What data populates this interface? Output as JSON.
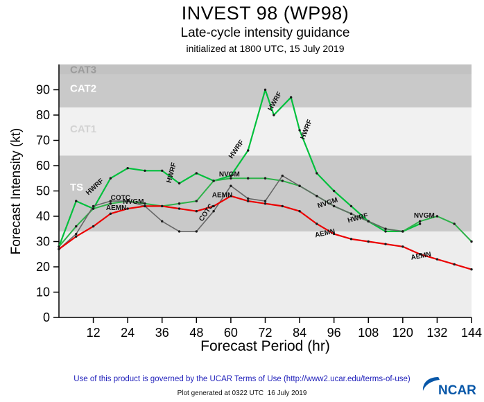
{
  "header": {
    "title": "INVEST 98 (WP98)",
    "subtitle": "Late-cycle intensity guidance",
    "initialized": "initialized at 1800 UTC, 15 July 2019"
  },
  "chart_data": {
    "type": "line",
    "title": "INVEST 98 (WP98)",
    "subtitle": "Late-cycle intensity guidance",
    "xlabel": "Forecast Period (hr)",
    "ylabel": "Forecast Intensity (kt)",
    "xlim": [
      0,
      144
    ],
    "ylim": [
      0,
      100
    ],
    "xticks": [
      12,
      24,
      36,
      48,
      60,
      72,
      84,
      96,
      108,
      120,
      132,
      144
    ],
    "yticks": [
      0,
      10,
      20,
      30,
      40,
      50,
      60,
      70,
      80,
      90
    ],
    "grid": false,
    "legend": "labels-along-lines",
    "bands": [
      {
        "label": "",
        "from": 0,
        "to": 34,
        "color": "#ededed",
        "label_color": "",
        "label_y": 0
      },
      {
        "label": "TS",
        "from": 34,
        "to": 64,
        "color": "#c9c9c9",
        "label_color": "#ffffff",
        "label_y": 51.5
      },
      {
        "label": "CAT1",
        "from": 64,
        "to": 83,
        "color": "#f1f1f1",
        "label_color": "#d2d2d2",
        "label_y": 74.5
      },
      {
        "label": "CAT2",
        "from": 83,
        "to": 96,
        "color": "#c9c9c9",
        "label_color": "#ffffff",
        "label_y": 90.5
      },
      {
        "label": "CAT3",
        "from": 96,
        "to": 100,
        "color": "#c2c2c2",
        "label_color": "#9b9b9b",
        "label_y": 98
      }
    ],
    "series": [
      {
        "name": "HWRF",
        "color": "#00c03c",
        "width": 2.2,
        "x": [
          0,
          6,
          12,
          18,
          24,
          30,
          36,
          42,
          48,
          54,
          60,
          66,
          72,
          75,
          81,
          84,
          90,
          96,
          102,
          108,
          114,
          120,
          126
        ],
        "values": [
          28,
          46,
          43,
          55,
          59,
          58,
          58,
          53,
          57,
          54,
          56,
          66,
          90,
          80,
          87,
          74,
          57,
          50,
          44,
          38,
          34,
          34,
          37
        ]
      },
      {
        "name": "NVGM",
        "color": "#2eb24a",
        "width": 2,
        "x": [
          0,
          6,
          12,
          18,
          24,
          30,
          36,
          42,
          48,
          54,
          60,
          66,
          72,
          78,
          84,
          90,
          96,
          102,
          108,
          114,
          120,
          126,
          132,
          138,
          144
        ],
        "values": [
          28,
          36,
          43,
          45,
          46,
          45,
          44,
          45,
          46,
          54,
          55,
          55,
          55,
          54,
          52,
          48,
          44,
          41,
          38,
          35,
          34,
          38,
          40,
          37,
          30
        ]
      },
      {
        "name": "COTC",
        "color": "#666666",
        "width": 1.6,
        "x": [
          0,
          6,
          12,
          18,
          24,
          30,
          36,
          42,
          48,
          54,
          60,
          66,
          72,
          78,
          84,
          90,
          96,
          102,
          108,
          114,
          120
        ],
        "values": [
          27,
          33,
          44,
          46,
          46,
          44,
          38,
          34,
          34,
          42,
          52,
          47,
          46,
          56,
          52,
          48,
          44,
          41,
          38,
          35,
          34
        ]
      },
      {
        "name": "AEMN",
        "color": "#eb0000",
        "width": 2.2,
        "x": [
          0,
          6,
          12,
          18,
          24,
          30,
          36,
          42,
          48,
          54,
          60,
          66,
          72,
          78,
          84,
          90,
          96,
          102,
          108,
          114,
          120,
          126,
          132,
          138,
          144
        ],
        "values": [
          27,
          32,
          36,
          41,
          43,
          44,
          44,
          43,
          42,
          44,
          48,
          46,
          45,
          44,
          42,
          37,
          33,
          31,
          30,
          29,
          28,
          25,
          23,
          21,
          19
        ]
      }
    ],
    "line_labels": [
      {
        "text": "HWRF",
        "x": 13,
        "y": 51,
        "rot": -42
      },
      {
        "text": "COTC",
        "x": 21.5,
        "y": 46.5,
        "rot": 0
      },
      {
        "text": "NVGM",
        "x": 26,
        "y": 45,
        "rot": 0
      },
      {
        "text": "AEMN",
        "x": 20,
        "y": 42.5,
        "rot": 0
      },
      {
        "text": "HWRF",
        "x": 40,
        "y": 57,
        "rot": -75
      },
      {
        "text": "COTC",
        "x": 52,
        "y": 41,
        "rot": -55
      },
      {
        "text": "AEMN",
        "x": 57,
        "y": 47.5,
        "rot": 0
      },
      {
        "text": "NVGM",
        "x": 59.5,
        "y": 55.8,
        "rot": 0
      },
      {
        "text": "HWRF",
        "x": 62.5,
        "y": 66,
        "rot": -55
      },
      {
        "text": "HWRF",
        "x": 76,
        "y": 85,
        "rot": -60
      },
      {
        "text": "HWRF",
        "x": 87,
        "y": 74,
        "rot": -68
      },
      {
        "text": "NVGM",
        "x": 94,
        "y": 44.5,
        "rot": -18
      },
      {
        "text": "AEMN",
        "x": 93,
        "y": 32.5,
        "rot": -12
      },
      {
        "text": "HWRF",
        "x": 104.5,
        "y": 38.5,
        "rot": -15
      },
      {
        "text": "NVGM",
        "x": 127.5,
        "y": 39.5,
        "rot": 0
      },
      {
        "text": "AEMN",
        "x": 126.5,
        "y": 23.5,
        "rot": -10
      }
    ]
  },
  "footer": {
    "terms": "Use of this product is governed by the UCAR Terms of Use (http://www2.ucar.edu/terms-of-use)",
    "generated": "Plot generated at 0322 UTC  16 July 2019",
    "logo_text": "NCAR",
    "logo_color": "#0857a8"
  }
}
